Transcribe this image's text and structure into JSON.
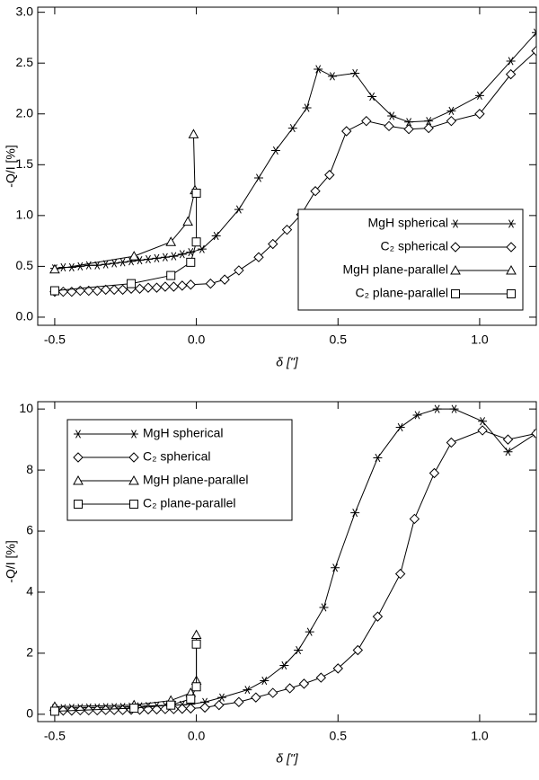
{
  "chart_data": [
    {
      "type": "line",
      "xlabel": "δ [\"]",
      "ylabel": "-Q/I [%]",
      "legend": "lower right",
      "xlim": [
        -0.56,
        1.2
      ],
      "ylim": [
        -0.08,
        3.05
      ],
      "xticks": [
        {
          "value": -0.5,
          "label": "-0.5"
        },
        {
          "value": 0,
          "label": "0.0"
        },
        {
          "value": 0.5,
          "label": "0.5"
        },
        {
          "value": 1,
          "label": "1.0"
        }
      ],
      "yticks": [
        {
          "value": 0,
          "label": "0.0"
        },
        {
          "value": 0.5,
          "label": "0.5"
        },
        {
          "value": 1,
          "label": "1.0"
        },
        {
          "value": 1.5,
          "label": "1.5"
        },
        {
          "value": 2,
          "label": "2.0"
        },
        {
          "value": 2.5,
          "label": "2.5"
        },
        {
          "value": 3,
          "label": "3.0"
        }
      ],
      "series": [
        {
          "name": "MgH spherical",
          "marker": "star",
          "color": "#000000",
          "x": [
            -0.5,
            -0.47,
            -0.44,
            -0.41,
            -0.38,
            -0.35,
            -0.32,
            -0.29,
            -0.26,
            -0.23,
            -0.2,
            -0.17,
            -0.14,
            -0.11,
            -0.08,
            -0.05,
            -0.02,
            0.02,
            0.07,
            0.15,
            0.22,
            0.28,
            0.34,
            0.39,
            0.43,
            0.48,
            0.56,
            0.62,
            0.69,
            0.75,
            0.82,
            0.9,
            1.0,
            1.11,
            1.2
          ],
          "values": [
            0.48,
            0.49,
            0.49,
            0.5,
            0.51,
            0.51,
            0.52,
            0.53,
            0.54,
            0.55,
            0.56,
            0.57,
            0.58,
            0.59,
            0.6,
            0.62,
            0.64,
            0.67,
            0.8,
            1.06,
            1.37,
            1.64,
            1.86,
            2.06,
            2.44,
            2.37,
            2.4,
            2.17,
            1.98,
            1.92,
            1.93,
            2.03,
            2.18,
            2.52,
            2.8
          ]
        },
        {
          "name": "C₂ spherical",
          "marker": "diamond",
          "color": "#000000",
          "x": [
            -0.5,
            -0.47,
            -0.44,
            -0.41,
            -0.38,
            -0.35,
            -0.32,
            -0.29,
            -0.26,
            -0.23,
            -0.2,
            -0.17,
            -0.14,
            -0.11,
            -0.08,
            -0.05,
            -0.02,
            0.05,
            0.1,
            0.15,
            0.22,
            0.27,
            0.32,
            0.37,
            0.42,
            0.47,
            0.53,
            0.6,
            0.68,
            0.75,
            0.82,
            0.9,
            1.0,
            1.11,
            1.2
          ],
          "values": [
            0.25,
            0.25,
            0.25,
            0.26,
            0.26,
            0.26,
            0.27,
            0.27,
            0.27,
            0.28,
            0.28,
            0.29,
            0.29,
            0.3,
            0.3,
            0.31,
            0.32,
            0.33,
            0.37,
            0.46,
            0.59,
            0.72,
            0.86,
            1.01,
            1.24,
            1.4,
            1.83,
            1.93,
            1.88,
            1.85,
            1.86,
            1.93,
            2.0,
            2.39,
            2.62
          ]
        },
        {
          "name": "MgH plane-parallel",
          "marker": "triangle",
          "color": "#000000",
          "x": [
            -0.5,
            -0.22,
            -0.09,
            -0.03,
            -0.005,
            -0.01
          ],
          "values": [
            0.47,
            0.6,
            0.74,
            0.94,
            1.25,
            1.8
          ]
        },
        {
          "name": "C₂ plane-parallel",
          "marker": "square",
          "color": "#000000",
          "x": [
            -0.5,
            -0.23,
            -0.09,
            -0.02,
            0,
            0
          ],
          "values": [
            0.26,
            0.33,
            0.41,
            0.54,
            0.74,
            1.22
          ]
        }
      ]
    },
    {
      "type": "line",
      "xlabel": "δ [\"]",
      "ylabel": "-Q/I [%]",
      "legend": "upper left",
      "xlim": [
        -0.56,
        1.2
      ],
      "ylim": [
        -0.24,
        10.24
      ],
      "xticks": [
        {
          "value": -0.5,
          "label": "-0.5"
        },
        {
          "value": 0,
          "label": "0.0"
        },
        {
          "value": 0.5,
          "label": "0.5"
        },
        {
          "value": 1,
          "label": "1.0"
        }
      ],
      "yticks": [
        0,
        2,
        4,
        6,
        8,
        10
      ],
      "series": [
        {
          "name": "MgH spherical",
          "marker": "star",
          "color": "#000000",
          "x": [
            -0.5,
            -0.47,
            -0.44,
            -0.41,
            -0.38,
            -0.35,
            -0.32,
            -0.29,
            -0.26,
            -0.23,
            -0.2,
            -0.17,
            -0.14,
            -0.11,
            -0.08,
            -0.05,
            -0.02,
            0.03,
            0.09,
            0.18,
            0.24,
            0.31,
            0.36,
            0.4,
            0.45,
            0.49,
            0.56,
            0.64,
            0.72,
            0.78,
            0.85,
            0.91,
            1.01,
            1.1,
            1.2
          ],
          "values": [
            0.2,
            0.2,
            0.21,
            0.21,
            0.22,
            0.22,
            0.23,
            0.23,
            0.24,
            0.25,
            0.26,
            0.27,
            0.28,
            0.29,
            0.3,
            0.31,
            0.33,
            0.4,
            0.55,
            0.8,
            1.1,
            1.6,
            2.1,
            2.7,
            3.5,
            4.8,
            6.6,
            8.4,
            9.4,
            9.8,
            10.0,
            10.0,
            9.6,
            8.6,
            9.2
          ]
        },
        {
          "name": "C₂ spherical",
          "marker": "diamond",
          "color": "#000000",
          "x": [
            -0.5,
            -0.47,
            -0.44,
            -0.41,
            -0.38,
            -0.35,
            -0.32,
            -0.29,
            -0.26,
            -0.23,
            -0.2,
            -0.17,
            -0.14,
            -0.11,
            -0.08,
            -0.05,
            -0.02,
            0.03,
            0.08,
            0.15,
            0.21,
            0.27,
            0.33,
            0.38,
            0.44,
            0.5,
            0.57,
            0.64,
            0.72,
            0.77,
            0.84,
            0.9,
            1.01,
            1.1,
            1.2
          ],
          "values": [
            0.12,
            0.12,
            0.12,
            0.13,
            0.13,
            0.13,
            0.14,
            0.14,
            0.14,
            0.15,
            0.15,
            0.16,
            0.16,
            0.17,
            0.17,
            0.18,
            0.19,
            0.22,
            0.3,
            0.4,
            0.55,
            0.7,
            0.85,
            1.0,
            1.2,
            1.5,
            2.1,
            3.2,
            4.6,
            6.4,
            7.9,
            8.9,
            9.3,
            9.0,
            9.2
          ]
        },
        {
          "name": "MgH plane-parallel",
          "marker": "triangle",
          "color": "#000000",
          "x": [
            -0.5,
            -0.22,
            -0.09,
            -0.02,
            0,
            0
          ],
          "values": [
            0.25,
            0.3,
            0.45,
            0.7,
            1.1,
            2.6
          ]
        },
        {
          "name": "C₂ plane-parallel",
          "marker": "square",
          "color": "#000000",
          "x": [
            -0.5,
            -0.22,
            -0.09,
            -0.02,
            0,
            0
          ],
          "values": [
            0.1,
            0.2,
            0.3,
            0.5,
            0.9,
            2.3
          ]
        }
      ]
    }
  ]
}
